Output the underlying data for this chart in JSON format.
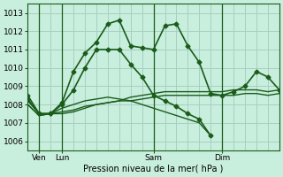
{
  "xlabel": "Pression niveau de la mer( hPa )",
  "background_color": "#c8eedd",
  "grid_color": "#a8cfc0",
  "line_color": "#1a5c1a",
  "ylim": [
    1005.5,
    1013.5
  ],
  "xlim": [
    0,
    22
  ],
  "xtick_positions": [
    1,
    3,
    11,
    17
  ],
  "xtick_labels": [
    "Ven",
    "Lun",
    "Sam",
    "Dim"
  ],
  "ytick_positions": [
    1006,
    1007,
    1008,
    1009,
    1010,
    1011,
    1012,
    1013
  ],
  "vline_positions": [
    1,
    3,
    11,
    17
  ],
  "grid_x_step": 1,
  "series": [
    {
      "x": [
        0,
        1,
        2,
        3,
        4,
        5,
        6,
        7,
        8,
        9,
        10,
        11,
        12,
        13,
        14,
        15,
        16,
        17,
        18,
        19,
        20,
        21,
        22
      ],
      "y": [
        1008.5,
        1007.5,
        1007.5,
        1008.1,
        1009.8,
        1010.8,
        1011.4,
        1012.4,
        1012.6,
        1011.2,
        1011.1,
        1011.0,
        1012.3,
        1012.4,
        1011.2,
        1010.3,
        1008.6,
        1008.5,
        1008.7,
        1009.0,
        1009.8,
        1009.5,
        1008.8
      ],
      "marker": "D",
      "markersize": 2.5,
      "linewidth": 1.2,
      "linestyle": "-"
    },
    {
      "x": [
        0,
        1,
        2,
        3,
        4,
        5,
        6,
        7,
        8,
        9,
        10,
        11,
        12,
        13,
        14,
        15,
        16
      ],
      "y": [
        1008.3,
        1007.5,
        1007.5,
        1008.0,
        1008.8,
        1010.0,
        1011.0,
        1011.0,
        1011.0,
        1010.2,
        1009.5,
        1008.5,
        1008.2,
        1007.9,
        1007.5,
        1007.2,
        1006.3
      ],
      "marker": "D",
      "markersize": 2.5,
      "linewidth": 1.2,
      "linestyle": "-"
    },
    {
      "x": [
        0,
        1,
        2,
        3,
        4,
        5,
        6,
        7,
        8,
        9,
        10,
        11,
        12,
        13,
        14,
        15,
        16
      ],
      "y": [
        1008.2,
        1007.5,
        1007.5,
        1007.8,
        1008.0,
        1008.2,
        1008.3,
        1008.4,
        1008.3,
        1008.2,
        1008.0,
        1007.8,
        1007.6,
        1007.4,
        1007.2,
        1007.0,
        1006.3
      ],
      "marker": null,
      "markersize": 0,
      "linewidth": 1.0,
      "linestyle": "-"
    },
    {
      "x": [
        0,
        1,
        2,
        3,
        4,
        5,
        6,
        7,
        8,
        9,
        10,
        11,
        12,
        13,
        14,
        15,
        16,
        17,
        18,
        19,
        20,
        21,
        22
      ],
      "y": [
        1008.0,
        1007.4,
        1007.5,
        1007.6,
        1007.7,
        1007.9,
        1008.0,
        1008.1,
        1008.2,
        1008.2,
        1008.3,
        1008.4,
        1008.5,
        1008.5,
        1008.5,
        1008.5,
        1008.5,
        1008.5,
        1008.5,
        1008.6,
        1008.6,
        1008.5,
        1008.6
      ],
      "marker": null,
      "markersize": 0,
      "linewidth": 1.0,
      "linestyle": "-"
    },
    {
      "x": [
        0,
        1,
        2,
        3,
        4,
        5,
        6,
        7,
        8,
        9,
        10,
        11,
        12,
        13,
        14,
        15,
        16,
        17,
        18,
        19,
        20,
        21,
        22
      ],
      "y": [
        1008.0,
        1007.4,
        1007.5,
        1007.5,
        1007.6,
        1007.8,
        1008.0,
        1008.1,
        1008.2,
        1008.4,
        1008.5,
        1008.6,
        1008.7,
        1008.7,
        1008.7,
        1008.7,
        1008.7,
        1008.7,
        1008.8,
        1008.8,
        1008.8,
        1008.7,
        1008.8
      ],
      "marker": null,
      "markersize": 0,
      "linewidth": 1.0,
      "linestyle": "-"
    }
  ]
}
